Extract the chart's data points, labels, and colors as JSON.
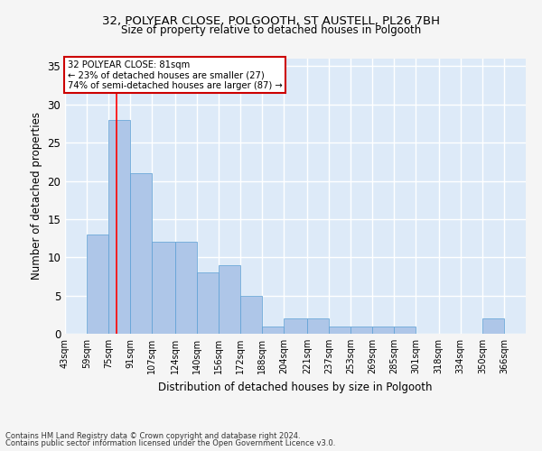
{
  "title1": "32, POLYEAR CLOSE, POLGOOTH, ST AUSTELL, PL26 7BH",
  "title2": "Size of property relative to detached houses in Polgooth",
  "xlabel": "Distribution of detached houses by size in Polgooth",
  "ylabel": "Number of detached properties",
  "categories": [
    "43sqm",
    "59sqm",
    "75sqm",
    "91sqm",
    "107sqm",
    "124sqm",
    "140sqm",
    "156sqm",
    "172sqm",
    "188sqm",
    "204sqm",
    "221sqm",
    "237sqm",
    "253sqm",
    "269sqm",
    "285sqm",
    "301sqm",
    "318sqm",
    "334sqm",
    "350sqm",
    "366sqm"
  ],
  "values": [
    0,
    13,
    28,
    21,
    12,
    12,
    8,
    9,
    5,
    1,
    2,
    2,
    1,
    1,
    1,
    1,
    0,
    0,
    0,
    2,
    0
  ],
  "bar_color": "#aec6e8",
  "bar_edge_color": "#5a9fd4",
  "red_line_x": 81,
  "bin_edges": [
    43,
    59,
    75,
    91,
    107,
    124,
    140,
    156,
    172,
    188,
    204,
    221,
    237,
    253,
    269,
    285,
    301,
    318,
    334,
    350,
    366,
    382
  ],
  "annotation_title": "32 POLYEAR CLOSE: 81sqm",
  "annotation_line1": "← 23% of detached houses are smaller (27)",
  "annotation_line2": "74% of semi-detached houses are larger (87) →",
  "annotation_box_color": "#ffffff",
  "annotation_box_edge": "#cc0000",
  "ylim": [
    0,
    36
  ],
  "yticks": [
    0,
    5,
    10,
    15,
    20,
    25,
    30,
    35
  ],
  "footer1": "Contains HM Land Registry data © Crown copyright and database right 2024.",
  "footer2": "Contains public sector information licensed under the Open Government Licence v3.0.",
  "bg_color": "#ddeaf8",
  "fig_bg_color": "#f5f5f5",
  "grid_color": "#ffffff"
}
